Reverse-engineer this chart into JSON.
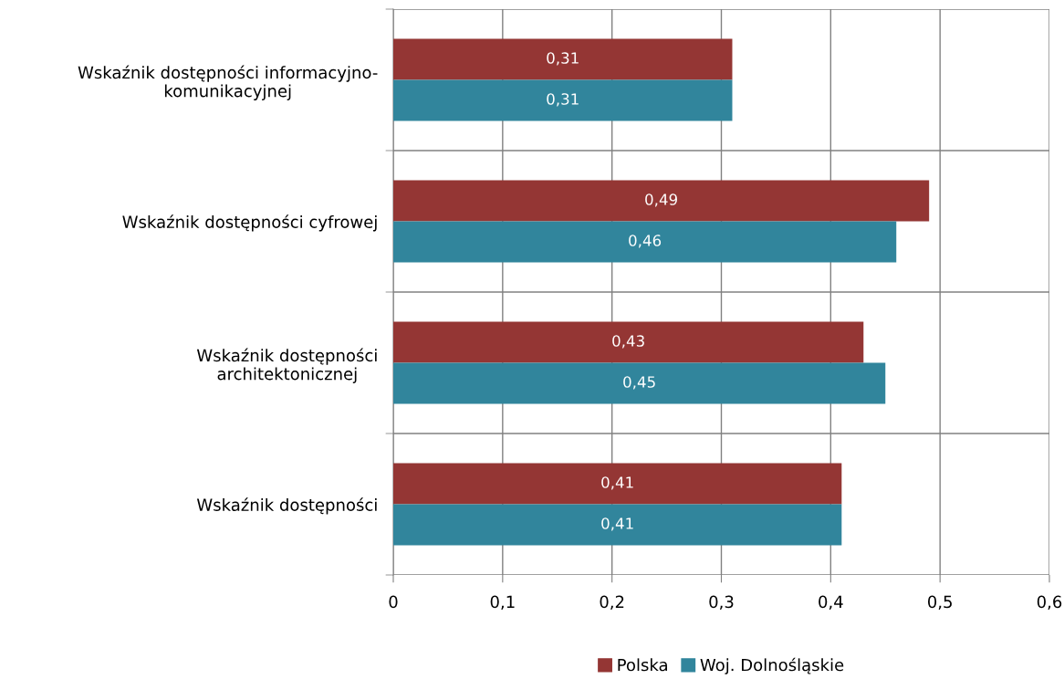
{
  "chart_data": {
    "type": "bar",
    "orientation": "horizontal",
    "categories": [
      "Wskaźnik dostępności informacyjno-\nkomunikacyjnej",
      "Wskaźnik dostępności cyfrowej",
      "Wskaźnik dostępności\narchitektonicznej",
      "Wskaźnik dostępności"
    ],
    "series": [
      {
        "name": "Polska",
        "color": "#943634",
        "values": [
          0.31,
          0.49,
          0.43,
          0.41
        ],
        "value_labels": [
          "0,31",
          "0,49",
          "0,43",
          "0,41"
        ]
      },
      {
        "name": "Woj. Dolnośląskie",
        "color": "#31859c",
        "values": [
          0.31,
          0.46,
          0.45,
          0.41
        ],
        "value_labels": [
          "0,31",
          "0,46",
          "0,45",
          "0,41"
        ]
      }
    ],
    "xlim": [
      0,
      0.6
    ],
    "xticks": [
      0,
      {
        "value": 0.1,
        "label": "0,1"
      },
      {
        "value": 0.2,
        "label": "0,2"
      },
      {
        "value": 0.3,
        "label": "0,3"
      },
      {
        "value": 0.4,
        "label": "0,4"
      },
      {
        "value": 0.5,
        "label": "0,5"
      },
      {
        "value": 0.6,
        "label": "0,6"
      }
    ],
    "grid": true,
    "legend": "bottom"
  }
}
